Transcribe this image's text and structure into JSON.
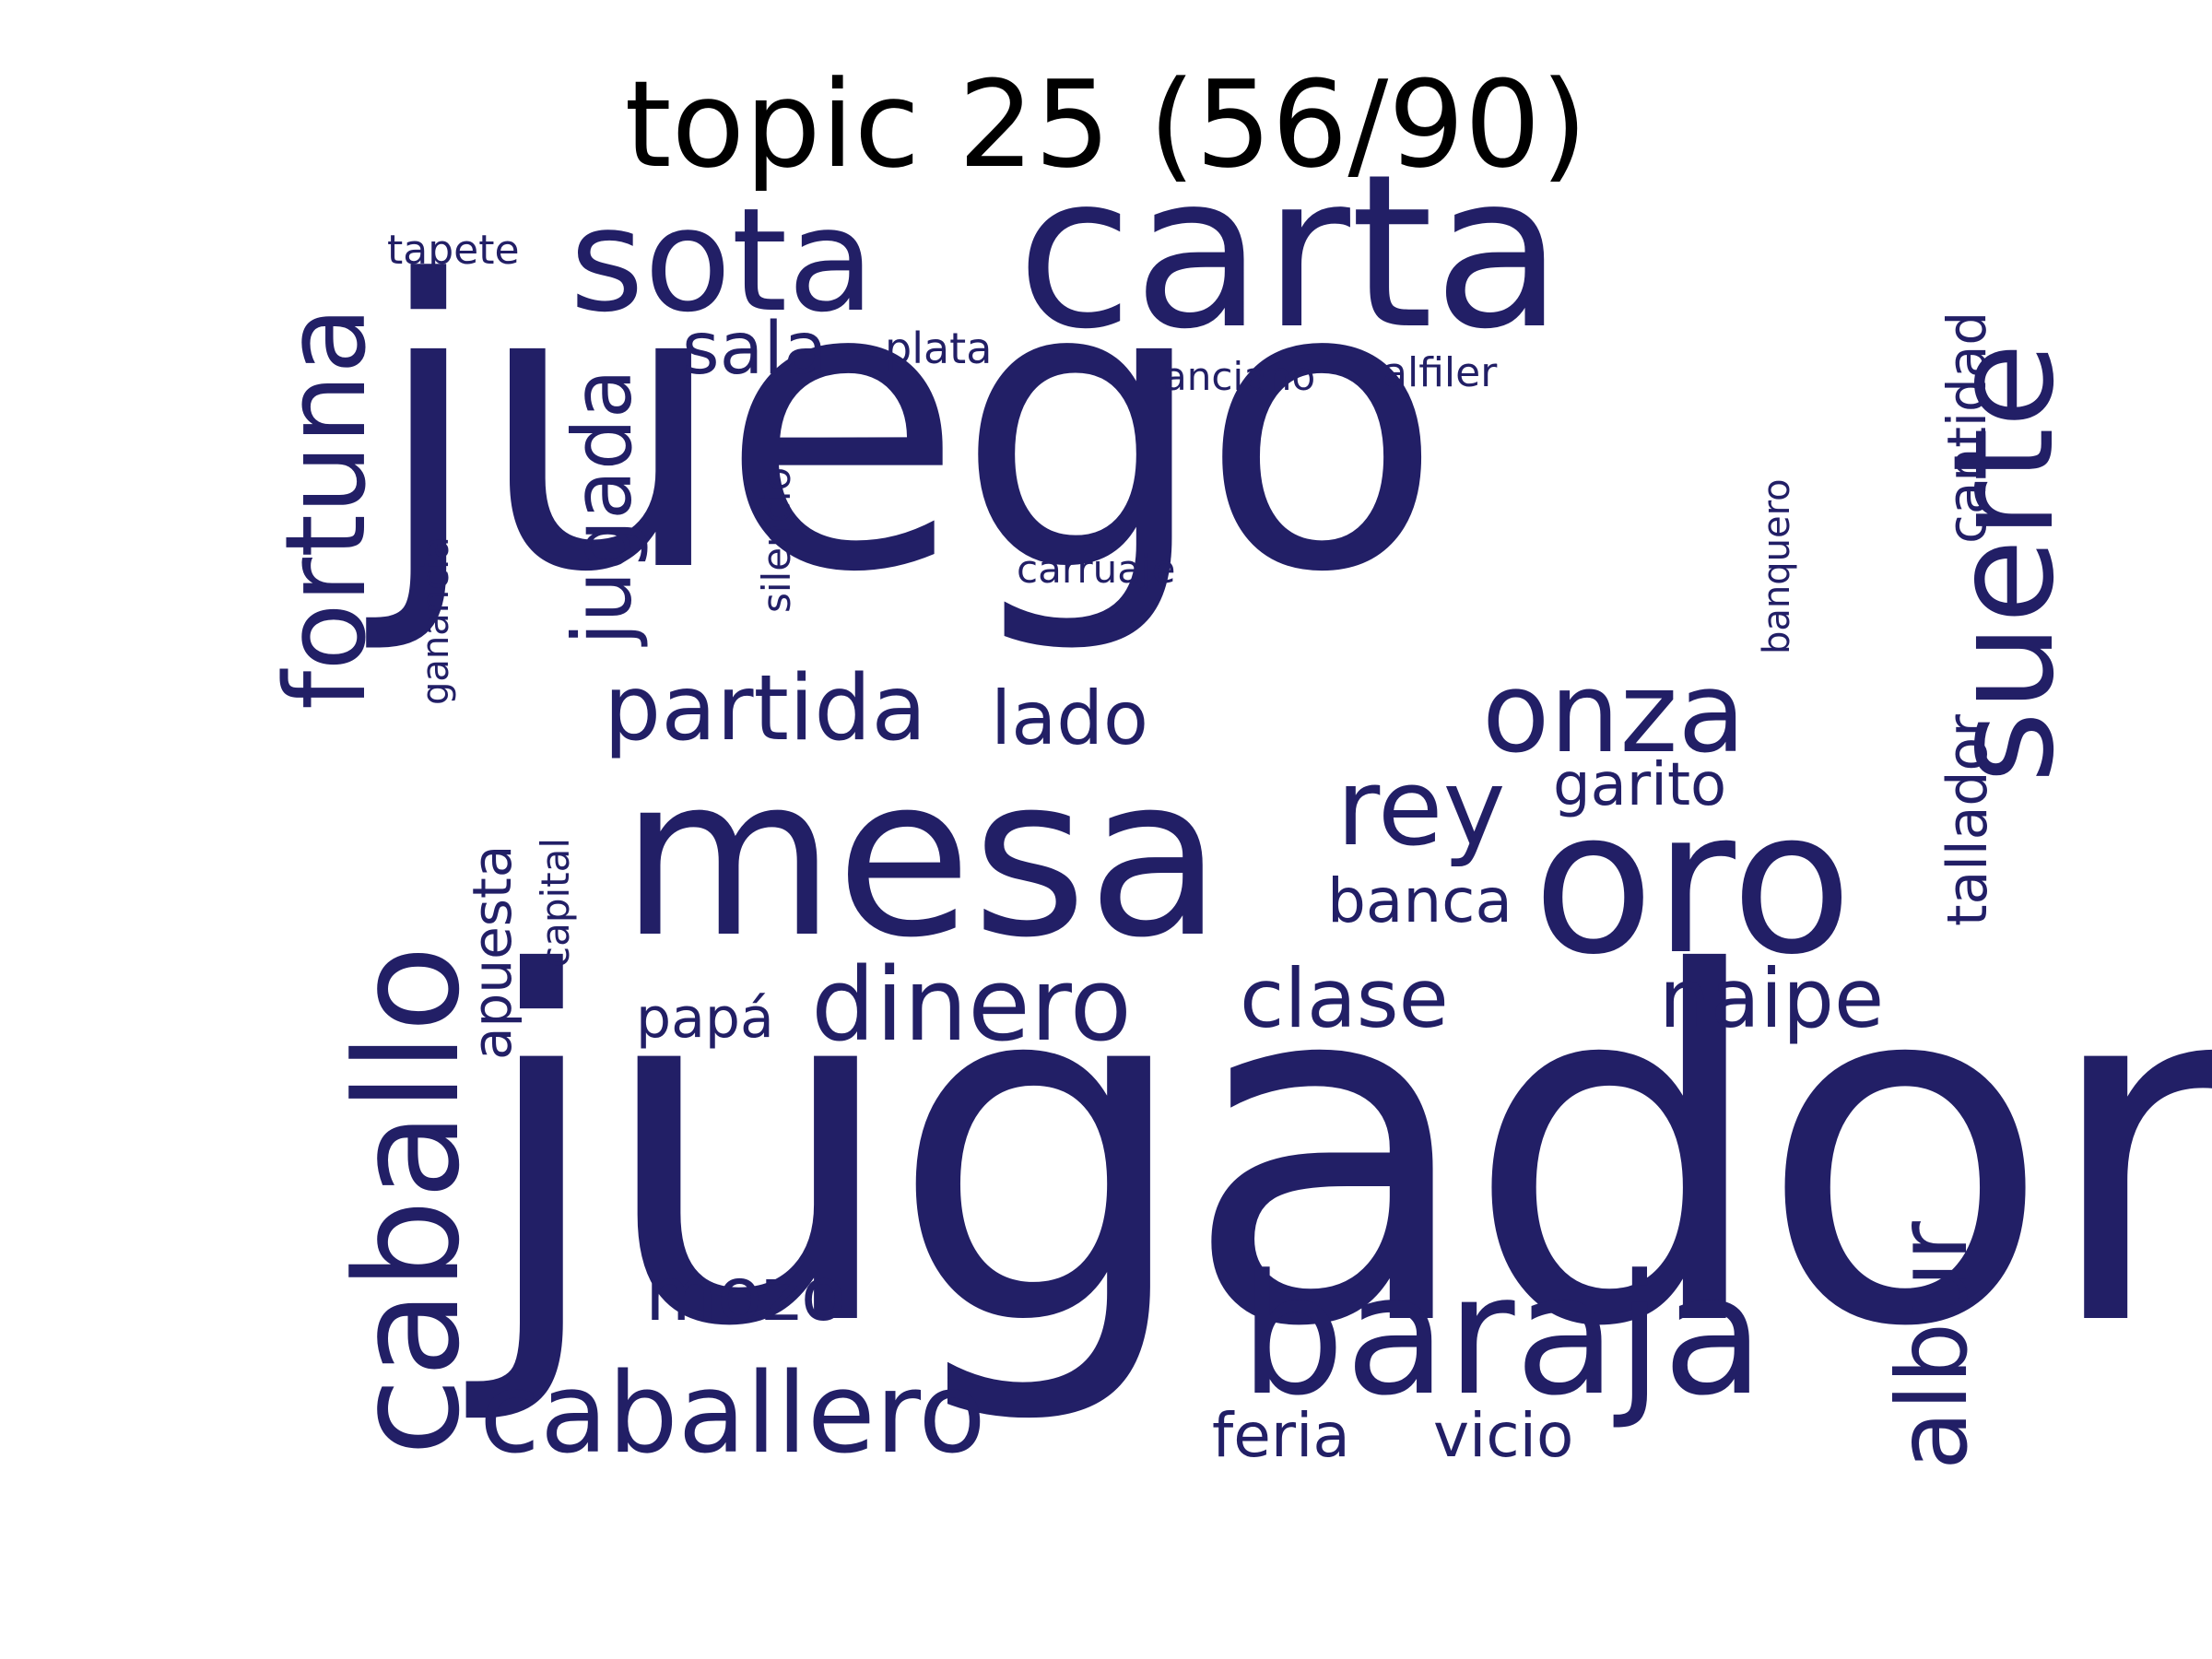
{
  "title": "topic 25 (56/90)",
  "word_color": "#221f66",
  "words": {
    "juego": "juego",
    "jugador": "jugador",
    "mesa": "mesa",
    "carta": "carta",
    "sota": "sota",
    "oro": "oro",
    "suerte": "suerte",
    "caballo": "caballo",
    "baraja": "baraja",
    "fortuna": "fortuna",
    "caballero": "caballero",
    "onza": "onza",
    "dinero": "dinero",
    "rey": "rey",
    "partida": "partida",
    "jugada": "jugada",
    "albur": "albur",
    "naipe": "naipe",
    "clase": "clase",
    "sala": "sala",
    "lado": "lado",
    "garito": "garito",
    "banca": "banca",
    "mozo": "mozo",
    "apuesta": "apuesta",
    "tallador": "tallador",
    "cantidad": "cantidad",
    "vicio": "vicio",
    "feria": "feria",
    "papa": "papá",
    "capital": "capital",
    "silencio": "silencio",
    "plata": "plata",
    "ganancia": "ganancia",
    "banquero": "banquero",
    "alfiler": "alfiler",
    "anciano": "anciano",
    "carruaje": "carruaje",
    "tapete": "tapete"
  }
}
